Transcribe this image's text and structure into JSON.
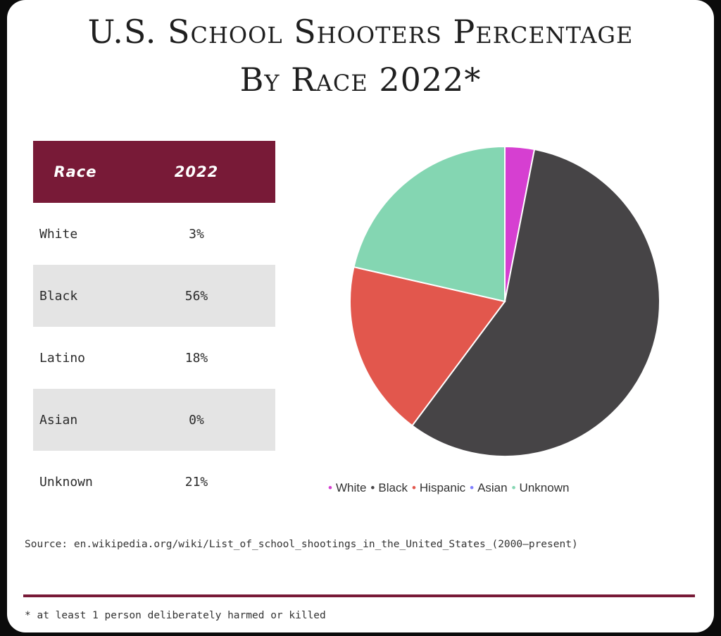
{
  "title": {
    "line1": "U.S. School Shooters Percentage",
    "line2": "By Race 2022*"
  },
  "table": {
    "headers": [
      "Race",
      "2022"
    ],
    "rows": [
      {
        "race": "White",
        "value": "3%"
      },
      {
        "race": "Black",
        "value": "56%"
      },
      {
        "race": "Latino",
        "value": "18%"
      },
      {
        "race": "Asian",
        "value": "0%"
      },
      {
        "race": "Unknown",
        "value": "21%"
      }
    ]
  },
  "chart_data": {
    "type": "pie",
    "categories": [
      "White",
      "Black",
      "Hispanic",
      "Asian",
      "Unknown"
    ],
    "values": [
      3,
      56,
      18,
      0,
      21
    ],
    "colors": [
      "#d63fd1",
      "#464446",
      "#e2574d",
      "#7f7fff",
      "#84d6b2"
    ],
    "legend": "bottom"
  },
  "source": "Source: en.wikipedia.org/wiki/List_of_school_shootings_in_the_United_States_(2000–present)",
  "footnote": "* at least 1 person deliberately harmed or killed",
  "colors": {
    "header_bg": "#781a37",
    "row_shade": "#e4e4e4"
  }
}
